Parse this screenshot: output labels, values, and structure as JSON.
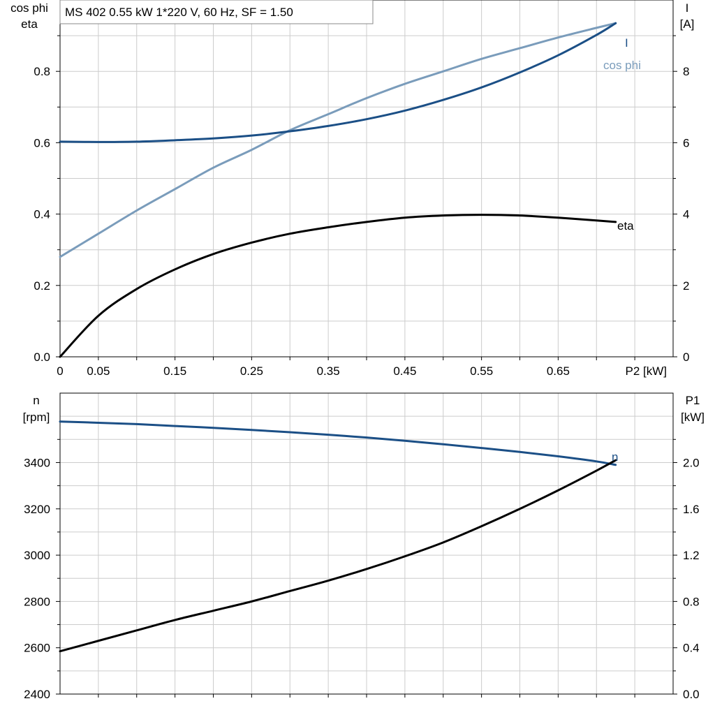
{
  "chart_data": [
    {
      "type": "line",
      "title": "MS 402   0.55 kW   1*220 V, 60 Hz, SF = 1.50",
      "xlabel": "P2 [kW]",
      "xlim": [
        0,
        0.8
      ],
      "x_ticks": [
        0,
        0.05,
        0.15,
        0.25,
        0.35,
        0.45,
        0.55,
        0.65
      ],
      "x_tick_labels": [
        "0",
        "0.05",
        "0.15",
        "0.25",
        "0.35",
        "0.45",
        "0.55",
        "0.65"
      ],
      "ylabel_left": [
        "cos phi",
        "eta"
      ],
      "ylim_left": [
        0,
        1.0
      ],
      "y_ticks_left": [
        0,
        0.2,
        0.4,
        0.6,
        0.8
      ],
      "y_tick_labels_left": [
        "0.0",
        "0.2",
        "0.4",
        "0.6",
        "0.8"
      ],
      "ylabel_right": [
        "I",
        "[A]"
      ],
      "ylim_right": [
        0,
        10
      ],
      "y_ticks_right": [
        0,
        2,
        4,
        6,
        8
      ],
      "y_tick_labels_right": [
        "0",
        "2",
        "4",
        "6",
        "8"
      ],
      "grid": true,
      "series": [
        {
          "name": "cos phi",
          "axis": "left",
          "color": "#7a9cbb",
          "x": [
            0,
            0.05,
            0.1,
            0.15,
            0.2,
            0.25,
            0.3,
            0.35,
            0.4,
            0.45,
            0.5,
            0.55,
            0.6,
            0.65,
            0.7,
            0.725
          ],
          "y": [
            0.28,
            0.345,
            0.41,
            0.47,
            0.53,
            0.58,
            0.635,
            0.68,
            0.725,
            0.765,
            0.8,
            0.835,
            0.865,
            0.895,
            0.922,
            0.935
          ]
        },
        {
          "name": "I",
          "axis": "right",
          "color": "#1b4f86",
          "x": [
            0,
            0.05,
            0.1,
            0.15,
            0.2,
            0.25,
            0.3,
            0.35,
            0.4,
            0.45,
            0.5,
            0.55,
            0.6,
            0.65,
            0.7,
            0.725
          ],
          "y": [
            6.03,
            6.02,
            6.03,
            6.07,
            6.12,
            6.2,
            6.32,
            6.47,
            6.66,
            6.9,
            7.2,
            7.55,
            7.97,
            8.45,
            9.02,
            9.35
          ]
        },
        {
          "name": "eta",
          "axis": "left",
          "color": "#000000",
          "x": [
            0,
            0.05,
            0.1,
            0.15,
            0.2,
            0.25,
            0.3,
            0.35,
            0.4,
            0.45,
            0.5,
            0.55,
            0.6,
            0.65,
            0.7,
            0.725
          ],
          "y": [
            0.0,
            0.115,
            0.19,
            0.245,
            0.288,
            0.32,
            0.345,
            0.363,
            0.378,
            0.39,
            0.396,
            0.398,
            0.396,
            0.39,
            0.382,
            0.378
          ]
        }
      ]
    },
    {
      "type": "line",
      "xlim": [
        0,
        0.8
      ],
      "ylabel_left": [
        "n",
        "[rpm]"
      ],
      "ylim_left": [
        2400,
        3700
      ],
      "y_ticks_left": [
        2400,
        2600,
        2800,
        3000,
        3200,
        3400
      ],
      "y_tick_labels_left": [
        "2400",
        "2600",
        "2800",
        "3000",
        "3200",
        "3400"
      ],
      "ylabel_right": [
        "P1",
        "[kW]"
      ],
      "ylim_right": [
        0,
        2.6
      ],
      "y_ticks_right": [
        0,
        0.4,
        0.8,
        1.2,
        1.6,
        2.0
      ],
      "y_tick_labels_right": [
        "0.0",
        "0.4",
        "0.8",
        "1.2",
        "1.6",
        "2.0"
      ],
      "grid": true,
      "series": [
        {
          "name": "n",
          "axis": "left",
          "color": "#1b4f86",
          "x": [
            0,
            0.05,
            0.1,
            0.15,
            0.2,
            0.25,
            0.3,
            0.35,
            0.4,
            0.45,
            0.5,
            0.55,
            0.6,
            0.65,
            0.7,
            0.725
          ],
          "y": [
            3577,
            3572,
            3566,
            3558,
            3550,
            3541,
            3531,
            3520,
            3508,
            3494,
            3479,
            3463,
            3446,
            3427,
            3405,
            3390
          ]
        },
        {
          "label": "P1",
          "axis": "right",
          "color": "#000000",
          "x": [
            0,
            0.05,
            0.1,
            0.15,
            0.2,
            0.25,
            0.3,
            0.35,
            0.4,
            0.45,
            0.5,
            0.55,
            0.6,
            0.65,
            0.7,
            0.725
          ],
          "y": [
            0.37,
            0.46,
            0.55,
            0.64,
            0.72,
            0.8,
            0.89,
            0.98,
            1.08,
            1.19,
            1.31,
            1.45,
            1.6,
            1.76,
            1.93,
            2.02
          ]
        }
      ]
    }
  ]
}
